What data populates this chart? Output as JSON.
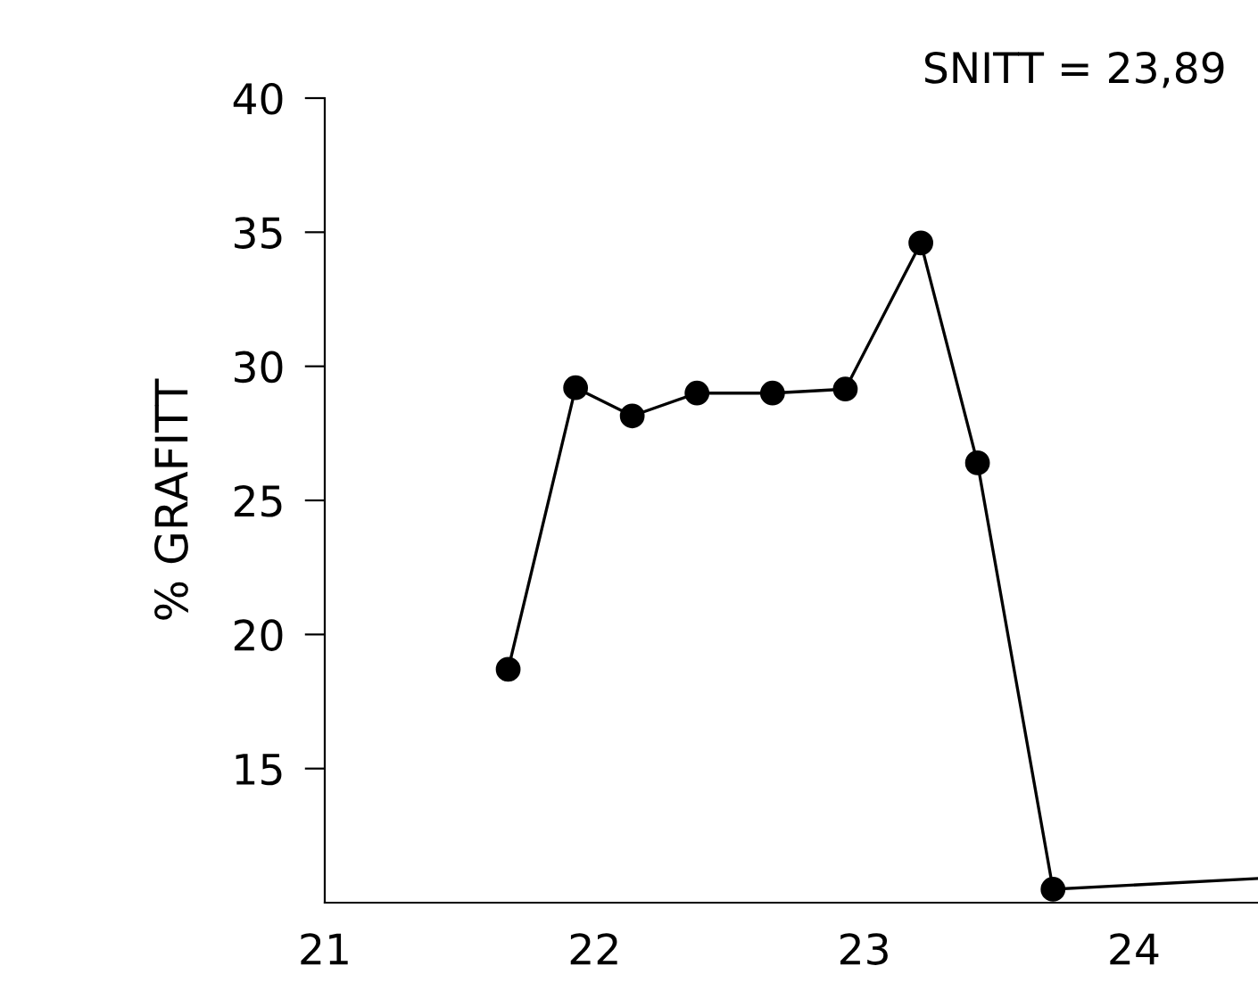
{
  "chart_data": {
    "type": "line",
    "ylabel": "% GRAFITT",
    "annotations": [
      "SNITT = 23,89"
    ],
    "xlim": [
      21,
      24.46
    ],
    "xticks": [
      21,
      22,
      23,
      24
    ],
    "ylim": [
      10,
      40
    ],
    "yticks": [
      15,
      20,
      25,
      30,
      35,
      40
    ],
    "grid": false,
    "legend": false,
    "series": [
      {
        "color": "#000000",
        "marker": "circle",
        "x": [
          21.68,
          21.93,
          22.14,
          22.38,
          22.66,
          22.93,
          23.21,
          23.42,
          23.7
        ],
        "values": [
          18.7,
          29.2,
          28.15,
          29.0,
          29.0,
          29.15,
          34.6,
          26.4,
          10.5
        ]
      },
      {
        "color": "#000000",
        "marker": "none",
        "x": [
          23.7,
          24.46
        ],
        "values": [
          10.5,
          10.9
        ]
      }
    ]
  }
}
